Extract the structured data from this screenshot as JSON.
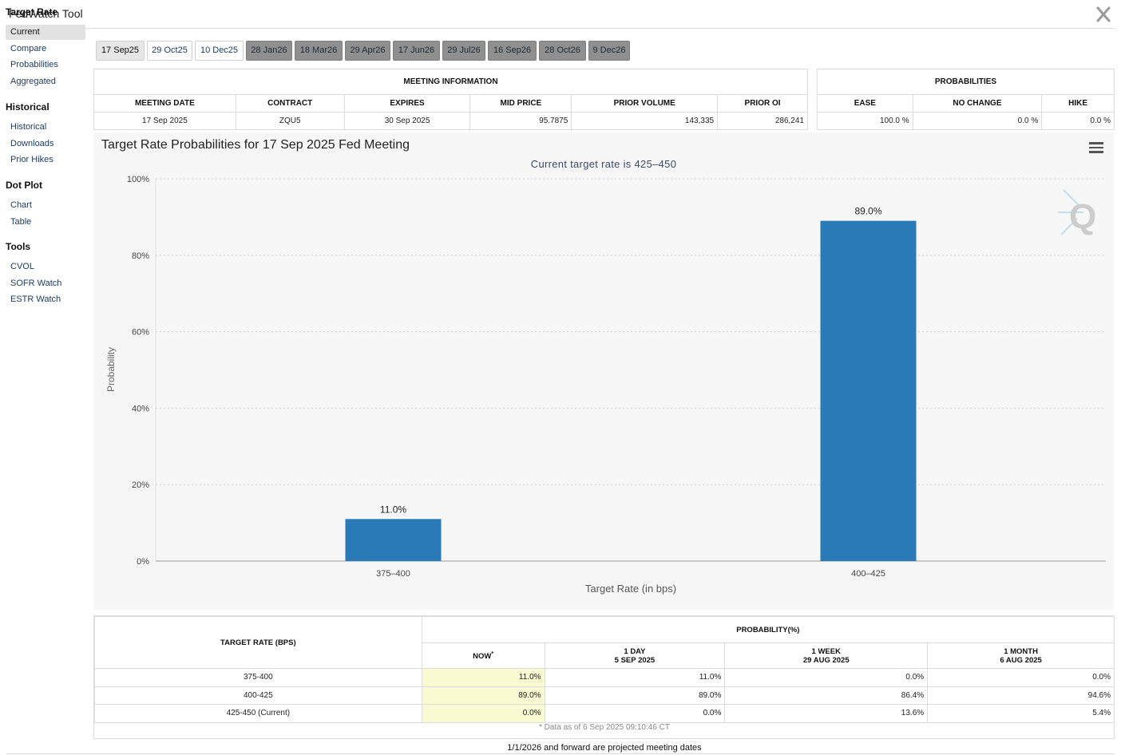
{
  "app": {
    "title": "FedWatch Tool",
    "close_label": "X"
  },
  "sidebar": {
    "sections": [
      {
        "title": "Target Rate",
        "items": [
          "Current",
          "Compare",
          "Probabilities",
          "Aggregated"
        ]
      },
      {
        "title": "Historical",
        "items": [
          "Historical",
          "Downloads",
          "Prior Hikes"
        ]
      },
      {
        "title": "Dot Plot",
        "items": [
          "Chart",
          "Table"
        ]
      },
      {
        "title": "Tools",
        "items": [
          "CVOL",
          "SOFR Watch",
          "ESTR Watch"
        ]
      }
    ],
    "active_item": "Current"
  },
  "tabs": [
    "17 Sep25",
    "29 Oct25",
    "10 Dec25",
    "28 Jan26",
    "18 Mar26",
    "29 Apr26",
    "17 Jun26",
    "29 Jul26",
    "16 Sep26",
    "28 Oct26",
    "9 Dec26"
  ],
  "meeting_info": {
    "header": "MEETING INFORMATION",
    "columns": [
      "MEETING DATE",
      "CONTRACT",
      "EXPIRES",
      "MID PRICE",
      "PRIOR VOLUME",
      "PRIOR OI"
    ],
    "values": [
      "17 Sep 2025",
      "ZQU5",
      "30 Sep 2025",
      "95.7875",
      "143,335",
      "286,241"
    ]
  },
  "probabilities": {
    "header": "PROBABILITIES",
    "columns": [
      "EASE",
      "NO CHANGE",
      "HIKE"
    ],
    "values": [
      "100.0 %",
      "0.0 %",
      "0.0 %"
    ]
  },
  "chart_data": {
    "type": "bar",
    "title": "Target Rate Probabilities for 17 Sep 2025 Fed Meeting",
    "subtitle": "Current target rate is 425–450",
    "xlabel": "Target Rate (in bps)",
    "ylabel": "Probability",
    "categories": [
      "375–400",
      "400–425"
    ],
    "values": [
      11.0,
      89.0
    ],
    "data_labels": [
      "11.0%",
      "89.0%"
    ],
    "ylim": [
      0,
      100
    ],
    "yticks": [
      "0%",
      "20%",
      "40%",
      "60%",
      "80%",
      "100%"
    ],
    "ytick_values": [
      0,
      20,
      40,
      60,
      80,
      100
    ],
    "bar_color": "#2a7ab8",
    "grid": true
  },
  "prob_table": {
    "row_header": "TARGET RATE (BPS)",
    "group_header": "PROBABILITY(%)",
    "columns": [
      {
        "line1": "NOW",
        "line2": ""
      },
      {
        "line1": "1 DAY",
        "line2": "5 SEP 2025"
      },
      {
        "line1": "1 WEEK",
        "line2": "29 AUG 2025"
      },
      {
        "line1": "1 MONTH",
        "line2": "6 AUG 2025"
      }
    ],
    "now_marker": "*",
    "rows": [
      {
        "rate": "375-400",
        "values": [
          "11.0%",
          "11.0%",
          "0.0%",
          "0.0%"
        ]
      },
      {
        "rate": "400-425",
        "values": [
          "89.0%",
          "89.0%",
          "86.4%",
          "94.6%"
        ]
      },
      {
        "rate": "425-450 (Current)",
        "values": [
          "0.0%",
          "0.0%",
          "13.6%",
          "5.4%"
        ]
      }
    ],
    "data_note": "* Data as of 6 Sep 2025 09:10:46 CT"
  },
  "footnote": "1/1/2026 and forward are projected meeting dates",
  "colors": {
    "accent": "#2a7ab8",
    "now_bg": "#fafad2",
    "tab_future": "#8f8f8f"
  }
}
